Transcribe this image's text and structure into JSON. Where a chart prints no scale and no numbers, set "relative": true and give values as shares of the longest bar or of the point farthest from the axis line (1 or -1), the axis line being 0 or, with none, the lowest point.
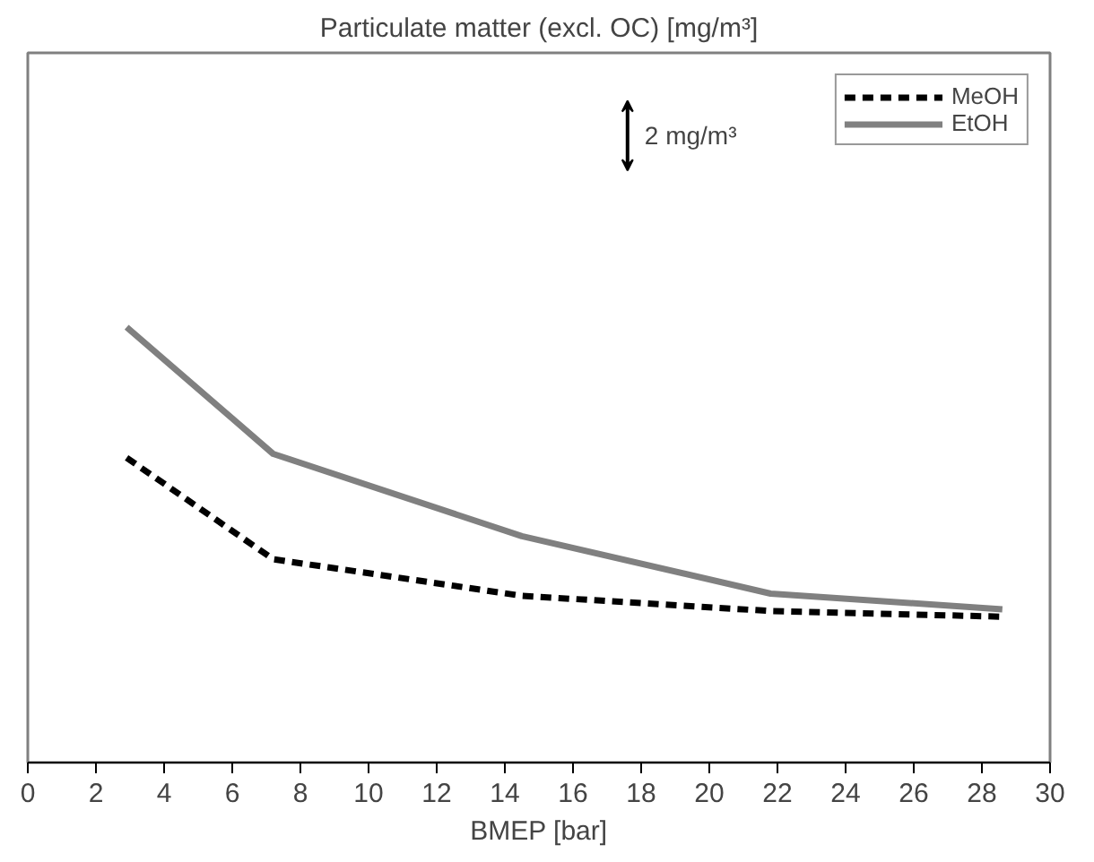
{
  "chart_data": {
    "type": "line",
    "title": "Particulate matter (excl. OC) [mg/m³]",
    "xlabel": "BMEP [bar]",
    "relative": true,
    "xlim": [
      0,
      30
    ],
    "xticks": [
      0,
      2,
      4,
      6,
      8,
      10,
      12,
      14,
      16,
      18,
      20,
      22,
      24,
      26,
      28,
      30
    ],
    "legend": "top right",
    "grid": false,
    "marker": "none",
    "annotations": [
      "2 mg/m³"
    ],
    "series": [
      {
        "name": "MeOH",
        "color": "#000000",
        "line_style": "dashed",
        "x": [
          2.9,
          7.2,
          14.5,
          21.8,
          28.6
        ],
        "values": [
          0.7,
          0.467,
          0.383,
          0.348,
          0.335
        ]
      },
      {
        "name": "EtOH",
        "color": "#808080",
        "line_style": "solid",
        "x": [
          2.9,
          7.2,
          14.5,
          21.8,
          28.6
        ],
        "values": [
          1.0,
          0.709,
          0.52,
          0.388,
          0.352
        ]
      }
    ]
  }
}
